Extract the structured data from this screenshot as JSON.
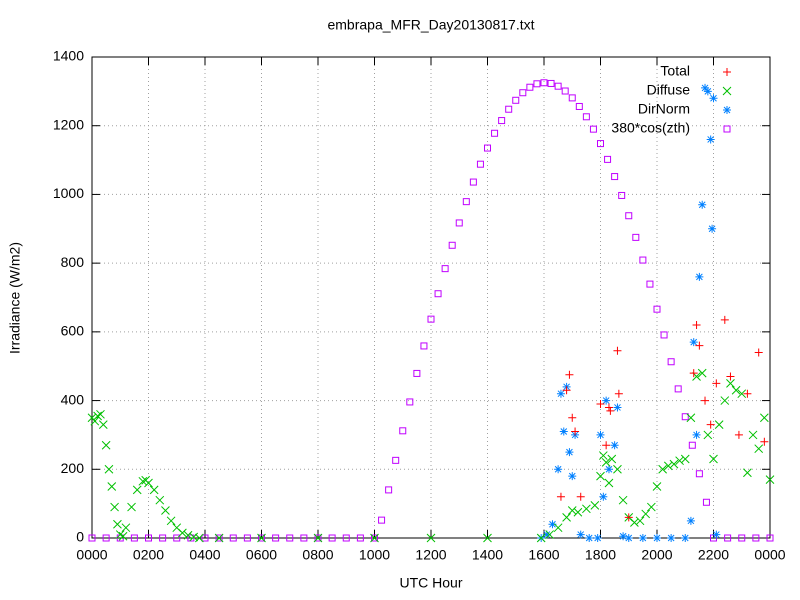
{
  "chart_data": {
    "type": "scatter",
    "title": "embrapa_MFR_Day20130817.txt",
    "xlabel": "UTC Hour",
    "ylabel": "Irradiance (W/m2)",
    "xlim": [
      0,
      24
    ],
    "ylim": [
      0,
      1400
    ],
    "xticks": [
      {
        "value": 0,
        "label": "0000"
      },
      {
        "value": 2,
        "label": "0200"
      },
      {
        "value": 4,
        "label": "0400"
      },
      {
        "value": 6,
        "label": "0600"
      },
      {
        "value": 8,
        "label": "0800"
      },
      {
        "value": 10,
        "label": "1000"
      },
      {
        "value": 12,
        "label": "1200"
      },
      {
        "value": 14,
        "label": "1400"
      },
      {
        "value": 16,
        "label": "1600"
      },
      {
        "value": 18,
        "label": "1800"
      },
      {
        "value": 20,
        "label": "2000"
      },
      {
        "value": 22,
        "label": "2200"
      },
      {
        "value": 24,
        "label": "0000"
      }
    ],
    "yticks": [
      0,
      200,
      400,
      600,
      800,
      1000,
      1200,
      1400
    ],
    "grid": true,
    "legend": "top-right",
    "series": [
      {
        "name": "Total",
        "color": "#ff0000",
        "marker": "plus",
        "x": [
          16.6,
          16.8,
          16.9,
          17.0,
          17.1,
          17.3,
          18.0,
          18.2,
          18.3,
          18.35,
          18.6,
          18.65,
          19.0,
          21.3,
          21.4,
          21.5,
          21.7,
          21.9,
          22.1,
          22.4,
          22.6,
          22.9,
          23.2,
          23.6,
          23.8
        ],
        "values": [
          120,
          430,
          475,
          350,
          310,
          120,
          390,
          270,
          380,
          370,
          545,
          420,
          60,
          480,
          620,
          560,
          400,
          330,
          450,
          635,
          470,
          300,
          420,
          540,
          280
        ]
      },
      {
        "name": "Diffuse",
        "color": "#00c000",
        "marker": "cross",
        "x": [
          0,
          0.1,
          0.2,
          0.3,
          0.4,
          0.5,
          0.6,
          0.7,
          0.8,
          0.9,
          1.0,
          1.1,
          1.2,
          1.4,
          1.6,
          1.8,
          1.9,
          2.0,
          2.2,
          2.4,
          2.6,
          2.8,
          3.0,
          3.2,
          3.4,
          3.6,
          3.8,
          4.5,
          6,
          8,
          10,
          12,
          14,
          15.9,
          16.2,
          16.5,
          16.8,
          17.0,
          17.2,
          17.5,
          17.8,
          18.0,
          18.1,
          18.2,
          18.3,
          18.4,
          18.6,
          18.8,
          19.0,
          19.2,
          19.4,
          19.6,
          19.8,
          20.0,
          20.2,
          20.4,
          20.6,
          20.8,
          21.0,
          21.2,
          21.4,
          21.6,
          21.8,
          22.0,
          22.2,
          22.4,
          22.6,
          22.8,
          23.0,
          23.2,
          23.4,
          23.6,
          23.8,
          24
        ],
        "values": [
          350,
          340,
          355,
          360,
          330,
          270,
          200,
          150,
          90,
          40,
          10,
          5,
          30,
          90,
          140,
          165,
          168,
          160,
          140,
          110,
          80,
          50,
          30,
          15,
          8,
          3,
          0,
          0,
          0,
          0,
          0,
          0,
          0,
          0,
          10,
          30,
          60,
          80,
          75,
          85,
          95,
          180,
          240,
          220,
          160,
          230,
          200,
          110,
          60,
          45,
          50,
          70,
          90,
          150,
          200,
          210,
          215,
          225,
          230,
          350,
          470,
          480,
          300,
          230,
          330,
          400,
          450,
          430,
          420,
          190,
          300,
          260,
          350,
          170
        ]
      },
      {
        "name": "DirNorm",
        "color": "#0080ff",
        "marker": "star",
        "x": [
          15.9,
          16.1,
          16.3,
          16.5,
          16.6,
          16.7,
          16.8,
          16.9,
          17.0,
          17.1,
          17.3,
          17.6,
          17.9,
          18.0,
          18.1,
          18.2,
          18.3,
          18.5,
          18.6,
          18.8,
          19.0,
          19.5,
          20.0,
          20.5,
          21.0,
          21.2,
          21.3,
          21.4,
          21.5,
          21.6,
          21.7,
          21.8,
          21.9,
          21.95,
          22.0,
          22.1
        ],
        "values": [
          0,
          10,
          40,
          200,
          420,
          310,
          440,
          250,
          180,
          300,
          10,
          0,
          0,
          300,
          120,
          400,
          200,
          270,
          380,
          5,
          0,
          0,
          0,
          0,
          0,
          50,
          570,
          300,
          760,
          970,
          1310,
          1300,
          1160,
          900,
          1280,
          10
        ]
      },
      {
        "name": "380*cos(zth)",
        "color": "#c000ff",
        "marker": "square",
        "x": [
          0,
          0.5,
          1,
          1.5,
          2,
          2.5,
          3,
          3.5,
          4,
          4.5,
          5,
          5.5,
          6,
          6.5,
          7,
          7.5,
          8,
          8.5,
          9,
          9.5,
          10,
          10.25,
          10.5,
          10.75,
          11,
          11.25,
          11.5,
          11.75,
          12,
          12.25,
          12.5,
          12.75,
          13,
          13.25,
          13.5,
          13.75,
          14,
          14.25,
          14.5,
          14.75,
          15,
          15.25,
          15.5,
          15.75,
          16,
          16.25,
          16.5,
          16.75,
          17,
          17.25,
          17.5,
          17.75,
          18,
          18.25,
          18.5,
          18.75,
          19,
          19.25,
          19.5,
          19.75,
          20,
          20.25,
          20.5,
          20.75,
          21,
          21.25,
          21.5,
          21.75,
          22,
          22.5,
          23,
          23.5,
          24
        ],
        "values": [
          0,
          0,
          0,
          0,
          0,
          0,
          0,
          0,
          0,
          0,
          0,
          0,
          0,
          0,
          0,
          0,
          0,
          0,
          0,
          0,
          0,
          52,
          140,
          226,
          312,
          396,
          479,
          559,
          637,
          711,
          784,
          852,
          917,
          979,
          1036,
          1088,
          1135,
          1178,
          1215,
          1248,
          1274,
          1296,
          1312,
          1322,
          1325,
          1323,
          1315,
          1301,
          1281,
          1256,
          1226,
          1190,
          1148,
          1102,
          1052,
          997,
          938,
          875,
          809,
          739,
          666,
          591,
          513,
          434,
          353,
          270,
          187,
          104,
          0,
          0,
          0,
          0,
          0
        ]
      }
    ]
  }
}
